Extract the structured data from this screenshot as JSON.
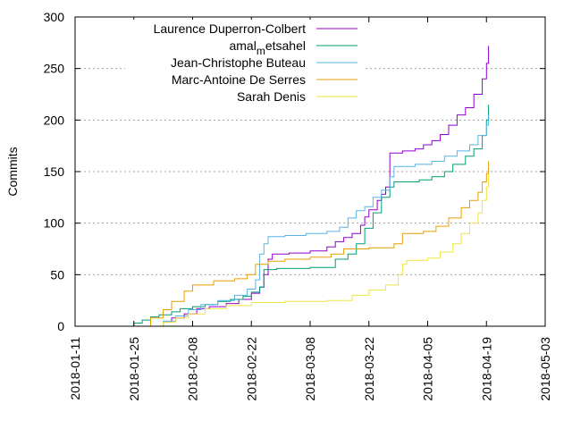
{
  "chart_data": {
    "type": "line",
    "step": true,
    "title": "",
    "xlabel": "",
    "ylabel": "Commits",
    "xlim": [
      "2018-01-11",
      "2018-05-03"
    ],
    "ylim": [
      0,
      300
    ],
    "x_ticks": [
      "2018-01-11",
      "2018-01-25",
      "2018-02-08",
      "2018-02-22",
      "2018-03-08",
      "2018-03-22",
      "2018-04-05",
      "2018-04-19",
      "2018-05-03"
    ],
    "y_ticks": [
      0,
      50,
      100,
      150,
      200,
      250,
      300
    ],
    "grid": "y dotted",
    "legend_position": "top-left",
    "series": [
      {
        "name": "Laurence Duperron-Colbert",
        "legend_parts": [
          "Laurence Duperron-Colbert"
        ],
        "color": "#9400d3",
        "points": [
          [
            "2018-01-30",
            0
          ],
          [
            "2018-02-01",
            4
          ],
          [
            "2018-02-03",
            8
          ],
          [
            "2018-02-06",
            12
          ],
          [
            "2018-02-09",
            17
          ],
          [
            "2018-02-12",
            19
          ],
          [
            "2018-02-16",
            22
          ],
          [
            "2018-02-19",
            26
          ],
          [
            "2018-02-22",
            32
          ],
          [
            "2018-02-24",
            38
          ],
          [
            "2018-02-25",
            50
          ],
          [
            "2018-02-26",
            65
          ],
          [
            "2018-02-27",
            70
          ],
          [
            "2018-03-03",
            71
          ],
          [
            "2018-03-08",
            73
          ],
          [
            "2018-03-12",
            77
          ],
          [
            "2018-03-14",
            82
          ],
          [
            "2018-03-16",
            86
          ],
          [
            "2018-03-18",
            90
          ],
          [
            "2018-03-20",
            98
          ],
          [
            "2018-03-21",
            106
          ],
          [
            "2018-03-22",
            113
          ],
          [
            "2018-03-24",
            122
          ],
          [
            "2018-03-25",
            128
          ],
          [
            "2018-03-26",
            135
          ],
          [
            "2018-03-27",
            145
          ],
          [
            "2018-03-27",
            168
          ],
          [
            "2018-03-30",
            170
          ],
          [
            "2018-04-02",
            172
          ],
          [
            "2018-04-04",
            176
          ],
          [
            "2018-04-06",
            180
          ],
          [
            "2018-04-08",
            186
          ],
          [
            "2018-04-10",
            195
          ],
          [
            "2018-04-12",
            205
          ],
          [
            "2018-04-14",
            212
          ],
          [
            "2018-04-16",
            225
          ],
          [
            "2018-04-18",
            240
          ],
          [
            "2018-04-19",
            255
          ],
          [
            "2018-04-19.5",
            272
          ]
        ]
      },
      {
        "name": "amal_metsahel",
        "legend_parts": [
          "amal",
          "m",
          "etsahel"
        ],
        "color": "#009e73",
        "points": [
          [
            "2018-01-24",
            0
          ],
          [
            "2018-01-25",
            3
          ],
          [
            "2018-01-27",
            6
          ],
          [
            "2018-01-29",
            9
          ],
          [
            "2018-01-31",
            11
          ],
          [
            "2018-02-03",
            14
          ],
          [
            "2018-02-05",
            17
          ],
          [
            "2018-02-08",
            19
          ],
          [
            "2018-02-11",
            21
          ],
          [
            "2018-02-14",
            24
          ],
          [
            "2018-02-17",
            26
          ],
          [
            "2018-02-20",
            29
          ],
          [
            "2018-02-22",
            33
          ],
          [
            "2018-02-24",
            38
          ],
          [
            "2018-02-25",
            55
          ],
          [
            "2018-02-28",
            56
          ],
          [
            "2018-03-08",
            57
          ],
          [
            "2018-03-13",
            57
          ],
          [
            "2018-03-14",
            65
          ],
          [
            "2018-03-17",
            70
          ],
          [
            "2018-03-19",
            80
          ],
          [
            "2018-03-21",
            95
          ],
          [
            "2018-03-23",
            110
          ],
          [
            "2018-03-25",
            125
          ],
          [
            "2018-03-27",
            135
          ],
          [
            "2018-03-28",
            140
          ],
          [
            "2018-04-03",
            142
          ],
          [
            "2018-04-06",
            145
          ],
          [
            "2018-04-09",
            150
          ],
          [
            "2018-04-11",
            157
          ],
          [
            "2018-04-14",
            165
          ],
          [
            "2018-04-16",
            172
          ],
          [
            "2018-04-18",
            185
          ],
          [
            "2018-04-19",
            200
          ],
          [
            "2018-04-19.5",
            215
          ]
        ]
      },
      {
        "name": "Jean-Christophe Buteau",
        "legend_parts": [
          "Jean-Christophe Buteau"
        ],
        "color": "#56b4e9",
        "points": [
          [
            "2018-01-30",
            0
          ],
          [
            "2018-02-01",
            5
          ],
          [
            "2018-02-04",
            10
          ],
          [
            "2018-02-07",
            16
          ],
          [
            "2018-02-10",
            21
          ],
          [
            "2018-02-14",
            25
          ],
          [
            "2018-02-18",
            30
          ],
          [
            "2018-02-21",
            36
          ],
          [
            "2018-02-23",
            45
          ],
          [
            "2018-02-24",
            70
          ],
          [
            "2018-02-25",
            80
          ],
          [
            "2018-02-26",
            87
          ],
          [
            "2018-03-02",
            88
          ],
          [
            "2018-03-07",
            90
          ],
          [
            "2018-03-12",
            92
          ],
          [
            "2018-03-15",
            96
          ],
          [
            "2018-03-17",
            105
          ],
          [
            "2018-03-19",
            112
          ],
          [
            "2018-03-21",
            116
          ],
          [
            "2018-03-23",
            125
          ],
          [
            "2018-03-25",
            132
          ],
          [
            "2018-03-27",
            145
          ],
          [
            "2018-03-28",
            155
          ],
          [
            "2018-04-02",
            157
          ],
          [
            "2018-04-06",
            160
          ],
          [
            "2018-04-09",
            165
          ],
          [
            "2018-04-12",
            170
          ],
          [
            "2018-04-15",
            176
          ],
          [
            "2018-04-17",
            185
          ],
          [
            "2018-04-19",
            195
          ],
          [
            "2018-04-19.5",
            205
          ]
        ]
      },
      {
        "name": "Marc-Antoine De Serres",
        "legend_parts": [
          "Marc-Antoine De Serres"
        ],
        "color": "#e69f00",
        "points": [
          [
            "2018-01-27",
            0
          ],
          [
            "2018-01-29",
            8
          ],
          [
            "2018-02-01",
            16
          ],
          [
            "2018-02-03",
            24
          ],
          [
            "2018-02-06",
            34
          ],
          [
            "2018-02-08",
            40
          ],
          [
            "2018-02-13",
            44
          ],
          [
            "2018-02-18",
            46
          ],
          [
            "2018-02-21",
            50
          ],
          [
            "2018-02-23",
            60
          ],
          [
            "2018-02-26",
            63
          ],
          [
            "2018-03-02",
            65
          ],
          [
            "2018-03-08",
            67
          ],
          [
            "2018-03-13",
            70
          ],
          [
            "2018-03-16",
            75
          ],
          [
            "2018-03-22",
            76
          ],
          [
            "2018-03-28",
            80
          ],
          [
            "2018-03-30",
            90
          ],
          [
            "2018-04-04",
            92
          ],
          [
            "2018-04-07",
            97
          ],
          [
            "2018-04-10",
            105
          ],
          [
            "2018-04-13",
            115
          ],
          [
            "2018-04-15",
            122
          ],
          [
            "2018-04-17",
            130
          ],
          [
            "2018-04-18",
            140
          ],
          [
            "2018-04-19",
            148
          ],
          [
            "2018-04-19.5",
            160
          ]
        ]
      },
      {
        "name": "Sarah Denis",
        "legend_parts": [
          "Sarah Denis"
        ],
        "color": "#f0e442",
        "points": [
          [
            "2018-01-30",
            0
          ],
          [
            "2018-02-01",
            4
          ],
          [
            "2018-02-04",
            8
          ],
          [
            "2018-02-07",
            12
          ],
          [
            "2018-02-11",
            17
          ],
          [
            "2018-02-16",
            20
          ],
          [
            "2018-02-22",
            23
          ],
          [
            "2018-03-02",
            24
          ],
          [
            "2018-03-12",
            25
          ],
          [
            "2018-03-18",
            30
          ],
          [
            "2018-03-22",
            35
          ],
          [
            "2018-03-26",
            40
          ],
          [
            "2018-03-29",
            50
          ],
          [
            "2018-03-30",
            60
          ],
          [
            "2018-03-31",
            64
          ],
          [
            "2018-04-05",
            66
          ],
          [
            "2018-04-08",
            72
          ],
          [
            "2018-04-11",
            80
          ],
          [
            "2018-04-13",
            90
          ],
          [
            "2018-04-15",
            100
          ],
          [
            "2018-04-17",
            110
          ],
          [
            "2018-04-18",
            122
          ],
          [
            "2018-04-19",
            135
          ],
          [
            "2018-04-19.5",
            148
          ]
        ]
      }
    ]
  }
}
